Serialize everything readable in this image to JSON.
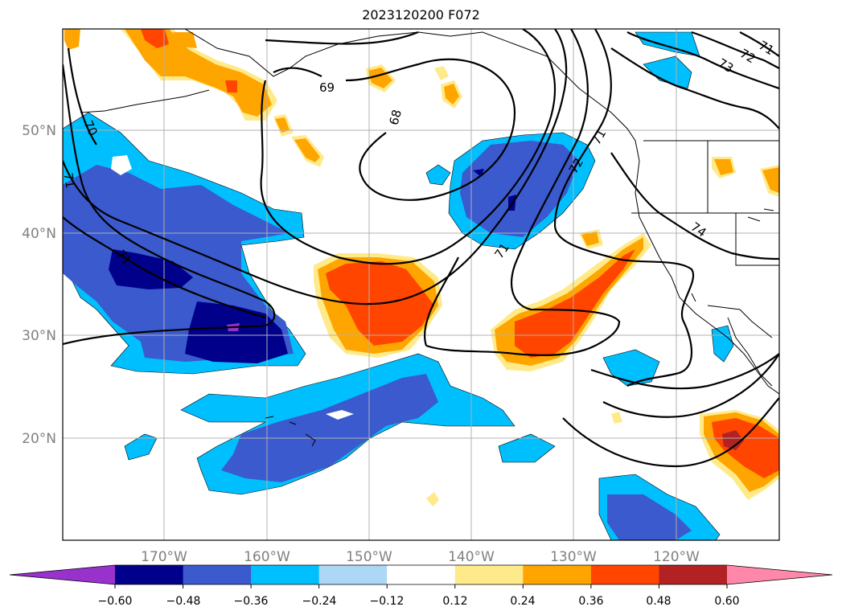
{
  "title": "2023120200 F072",
  "latitude_labels": [
    "50°N",
    "40°N",
    "30°N",
    "20°N"
  ],
  "longitude_labels": [
    "170°W",
    "160°W",
    "150°W",
    "140°W",
    "130°W",
    "120°W"
  ],
  "contour_labels": [
    "69",
    "68",
    "70",
    "71",
    "71",
    "71",
    "72",
    "71",
    "73",
    "72",
    "71",
    "74"
  ],
  "colorbar": {
    "ticks": [
      "−0.60",
      "−0.48",
      "−0.36",
      "−0.24",
      "−0.12",
      "0.12",
      "0.24",
      "0.36",
      "0.48",
      "0.60"
    ],
    "colors": [
      "#9932cc",
      "#00008b",
      "#3a5acd",
      "#00bfff",
      "#add8f5",
      "#ffffff",
      "#ffea8a",
      "#ffa500",
      "#ff4500",
      "#b22222",
      "#ff88aa"
    ]
  }
}
